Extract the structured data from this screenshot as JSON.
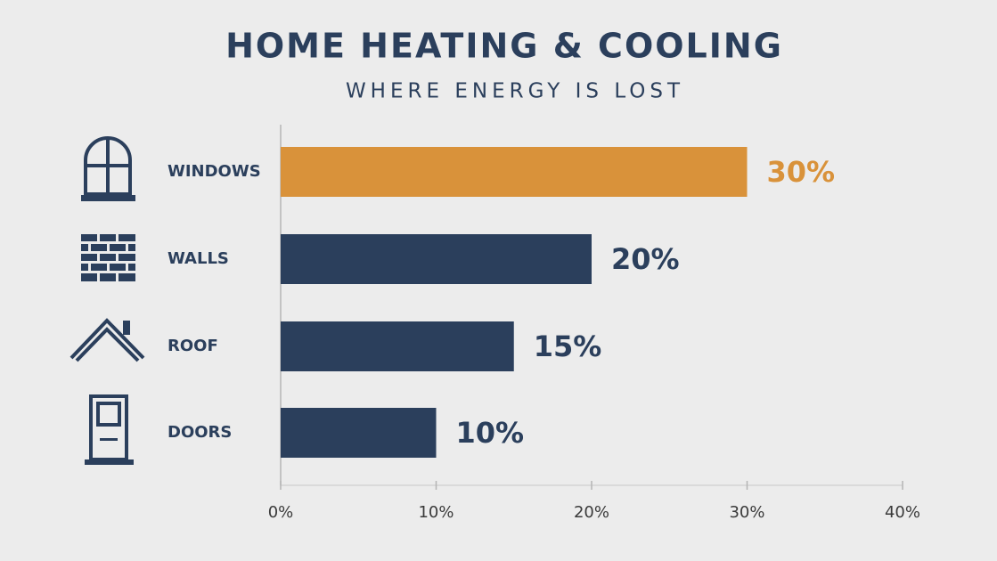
{
  "chart_data": {
    "type": "barh",
    "title": "HOME HEATING & COOLING",
    "subtitle": "WHERE ENERGY IS LOST",
    "categories": [
      "WINDOWS",
      "WALLS",
      "ROOF",
      "DOORS"
    ],
    "values": [
      30,
      20,
      15,
      10
    ],
    "value_labels": [
      "30%",
      "20%",
      "15%",
      "10%"
    ],
    "colors": [
      "#d9923a",
      "#2b3f5c",
      "#2b3f5c",
      "#2b3f5c"
    ],
    "label_colors": [
      "#d9923a",
      "#2b3f5c",
      "#2b3f5c",
      "#2b3f5c"
    ],
    "xlim": [
      0,
      40
    ],
    "xticks": [
      {
        "value": 0,
        "label": "0%"
      },
      {
        "value": 10,
        "label": "10%"
      },
      {
        "value": 20,
        "label": "20%"
      },
      {
        "value": 30,
        "label": "30%"
      },
      {
        "value": 40,
        "label": "40%"
      }
    ]
  }
}
